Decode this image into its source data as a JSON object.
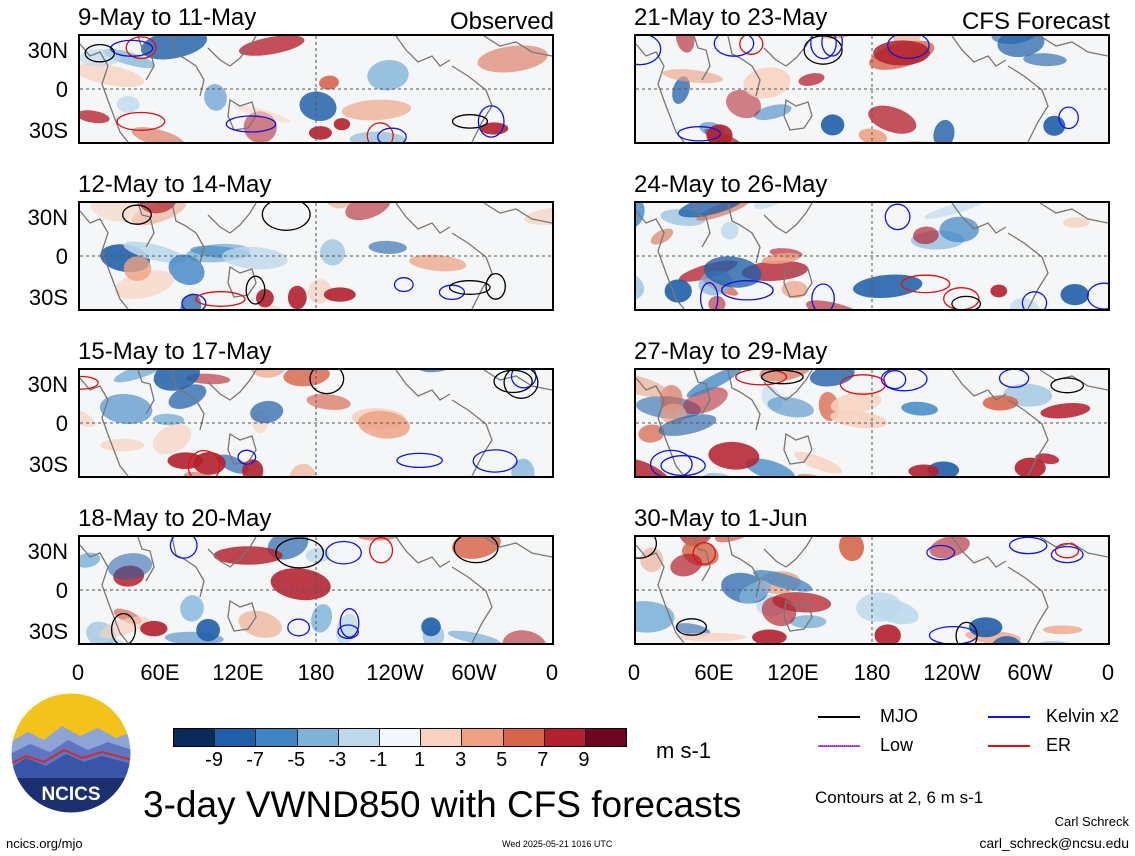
{
  "title": "3-day VWND850 with CFS forecasts",
  "observed_label": "Observed",
  "forecast_label": "CFS Forecast",
  "panels_left": [
    {
      "period": "9-May to 11-May"
    },
    {
      "period": "12-May to 14-May"
    },
    {
      "period": "15-May to 17-May"
    },
    {
      "period": "18-May to 20-May"
    }
  ],
  "panels_right": [
    {
      "period": "21-May to 23-May"
    },
    {
      "period": "24-May to 26-May"
    },
    {
      "period": "27-May to 29-May"
    },
    {
      "period": "30-May to 1-Jun"
    }
  ],
  "lat_labels": [
    "30N",
    "0",
    "30S"
  ],
  "lon_labels": [
    "0",
    "60E",
    "120E",
    "180",
    "120W",
    "60W",
    "0"
  ],
  "colorbar": {
    "labels": [
      "-9",
      "-7",
      "-5",
      "-3",
      "-1",
      "1",
      "3",
      "5",
      "7",
      "9"
    ],
    "colors": [
      "#0b2a5c",
      "#1f5fa8",
      "#3f85c4",
      "#7fb3d9",
      "#bcd9ec",
      "#f2f7fb",
      "#f8d2be",
      "#eda182",
      "#d76449",
      "#b3202d",
      "#6d0520"
    ],
    "units": "m s-1"
  },
  "legend": {
    "items": [
      {
        "label": "MJO",
        "color": "#000000"
      },
      {
        "label": "Kelvin x2",
        "color": "#1414e0"
      },
      {
        "label": "Low",
        "color": "#9933cc"
      },
      {
        "label": "ER",
        "color": "#e01010"
      }
    ],
    "contours_note": "Contours at 2, 6 m s-1"
  },
  "logo": {
    "text": "NCICS"
  },
  "footer": {
    "url": "ncics.org/mjo",
    "timestamp": "Wed 2025-05-21 1016 UTC",
    "author": "Carl Schreck",
    "email": "carl_schreck@ncsu.edu"
  }
}
